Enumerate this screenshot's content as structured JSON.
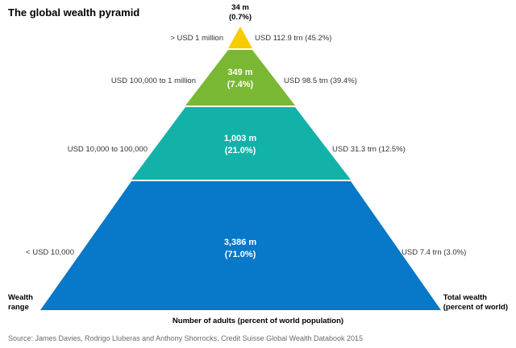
{
  "title": "The global wealth pyramid",
  "colors": {
    "tier1": "#f7cc00",
    "tier2": "#7ab833",
    "tier3": "#12b2a8",
    "tier4": "#0878c8"
  },
  "tiers": [
    {
      "range": "> USD 1 million",
      "adults": "34 m",
      "percent": "(0.7%)",
      "wealth": "USD 112.9 trn (45.2%)"
    },
    {
      "range": "USD 100,000 to 1 million",
      "adults": "349 m",
      "percent": "(7.4%)",
      "wealth": "USD 98.5 trn (39.4%)"
    },
    {
      "range": "USD 10,000 to 100,000",
      "adults": "1,003 m",
      "percent": "(21.0%)",
      "wealth": "USD 31.3 trn (12.5%)"
    },
    {
      "range": "< USD 10,000",
      "adults": "3,386 m",
      "percent": "(71.0%)",
      "wealth": "USD 7.4 trn (3.0%)"
    }
  ],
  "axis": {
    "left_line1": "Wealth",
    "left_line2": "range",
    "right_line1": "Total wealth",
    "right_line2": "(percent of world)",
    "bottom": "Number of adults (percent of world population)"
  },
  "source": "Source: James Davies, Rodrigo Lluberas and Anthony Shorrocks, Credit Suisse Global Wealth Databook 2015"
}
